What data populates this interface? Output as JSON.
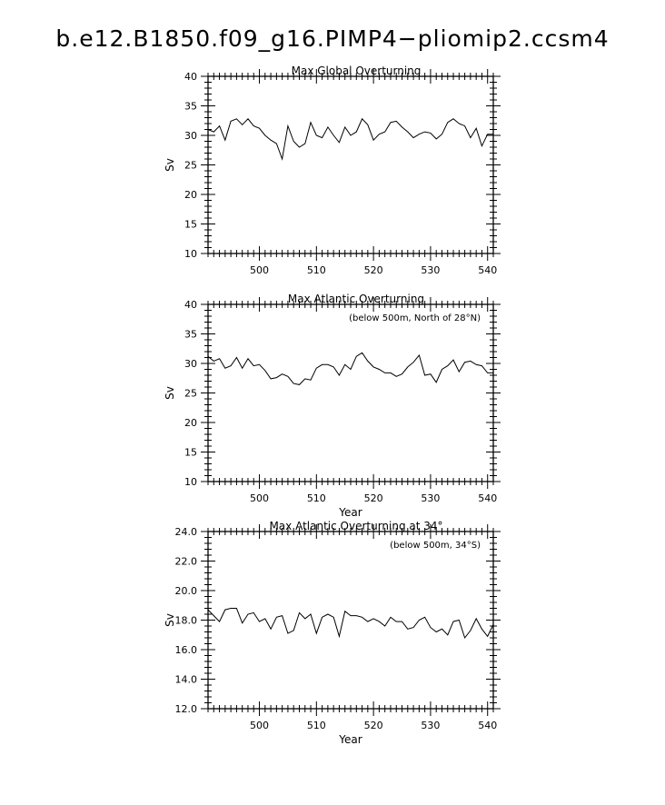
{
  "figure": {
    "title": "b.e12.B1850.f09_g16.PIMP4−pliomip2.ccsm4"
  },
  "chart_data": [
    {
      "type": "line",
      "title": "Max Global Overturning",
      "annotation": "",
      "xlabel": "",
      "ylabel": "Sv",
      "xlim": [
        491,
        541
      ],
      "ylim": [
        10,
        40
      ],
      "xticks": [
        500,
        510,
        520,
        530,
        540
      ],
      "xtick_labels": [
        "500",
        "510",
        "520",
        "530",
        "540"
      ],
      "yticks": [
        10,
        15,
        20,
        25,
        30,
        35,
        40
      ],
      "ytick_labels": [
        "10",
        "15",
        "20",
        "25",
        "30",
        "35",
        "40"
      ],
      "grid": false,
      "series": [
        {
          "x": [
            491,
            492,
            493,
            494,
            495,
            496,
            497,
            498,
            499,
            500,
            501,
            502,
            503,
            504,
            505,
            506,
            507,
            508,
            509,
            510,
            511,
            512,
            513,
            514,
            515,
            516,
            517,
            518,
            519,
            520,
            521,
            522,
            523,
            524,
            525,
            526,
            527,
            528,
            529,
            530,
            531,
            532,
            533,
            534,
            535,
            536,
            537,
            538,
            539,
            540,
            541
          ],
          "y": [
            31.0,
            30.6,
            31.6,
            29.2,
            32.4,
            32.8,
            31.8,
            32.8,
            31.6,
            31.2,
            30.0,
            29.2,
            28.6,
            26.0,
            31.6,
            29.0,
            28.0,
            28.6,
            32.2,
            30.0,
            29.6,
            31.4,
            30.0,
            28.8,
            31.4,
            30.0,
            30.6,
            32.8,
            31.8,
            29.2,
            30.2,
            30.6,
            32.2,
            32.4,
            31.4,
            30.6,
            29.6,
            30.2,
            30.6,
            30.4,
            29.4,
            30.2,
            32.2,
            32.8,
            32.0,
            31.6,
            29.6,
            31.2,
            28.2,
            30.2,
            30.2
          ]
        }
      ]
    },
    {
      "type": "line",
      "title": "Max Atlantic Overturning",
      "annotation": "(below 500m, North of 28°N)",
      "xlabel": "Year",
      "ylabel": "Sv",
      "xlim": [
        491,
        541
      ],
      "ylim": [
        10,
        40
      ],
      "xticks": [
        500,
        510,
        520,
        530,
        540
      ],
      "xtick_labels": [
        "500",
        "510",
        "520",
        "530",
        "540"
      ],
      "yticks": [
        10,
        15,
        20,
        25,
        30,
        35,
        40
      ],
      "ytick_labels": [
        "10",
        "15",
        "20",
        "25",
        "30",
        "35",
        "40"
      ],
      "grid": false,
      "series": [
        {
          "x": [
            491,
            492,
            493,
            494,
            495,
            496,
            497,
            498,
            499,
            500,
            501,
            502,
            503,
            504,
            505,
            506,
            507,
            508,
            509,
            510,
            511,
            512,
            513,
            514,
            515,
            516,
            517,
            518,
            519,
            520,
            521,
            522,
            523,
            524,
            525,
            526,
            527,
            528,
            529,
            530,
            531,
            532,
            533,
            534,
            535,
            536,
            537,
            538,
            539,
            540,
            541
          ],
          "y": [
            31.2,
            30.4,
            30.8,
            29.2,
            29.6,
            31.0,
            29.2,
            30.8,
            29.6,
            29.8,
            28.8,
            27.4,
            27.6,
            28.2,
            27.8,
            26.6,
            26.4,
            27.4,
            27.2,
            29.2,
            29.8,
            29.8,
            29.4,
            28.0,
            29.8,
            29.0,
            31.2,
            31.8,
            30.4,
            29.4,
            29.0,
            28.4,
            28.4,
            27.8,
            28.2,
            29.4,
            30.2,
            31.4,
            28.0,
            28.2,
            26.8,
            29.0,
            29.6,
            30.6,
            28.6,
            30.2,
            30.4,
            29.8,
            29.6,
            28.4,
            28.4
          ]
        }
      ]
    },
    {
      "type": "line",
      "title": "Max Atlantic Overturning at 34°",
      "annotation": "(below 500m, 34°S)",
      "xlabel": "Year",
      "ylabel": "Sv",
      "xlim": [
        491,
        541
      ],
      "ylim": [
        12,
        24
      ],
      "xticks": [
        500,
        510,
        520,
        530,
        540
      ],
      "xtick_labels": [
        "500",
        "510",
        "520",
        "530",
        "540"
      ],
      "yticks": [
        12,
        14,
        16,
        18,
        20,
        22,
        24
      ],
      "ytick_labels": [
        "12.0",
        "14.0",
        "16.0",
        "18.0",
        "20.0",
        "22.0",
        "24.0"
      ],
      "grid": false,
      "series": [
        {
          "x": [
            491,
            492,
            493,
            494,
            495,
            496,
            497,
            498,
            499,
            500,
            501,
            502,
            503,
            504,
            505,
            506,
            507,
            508,
            509,
            510,
            511,
            512,
            513,
            514,
            515,
            516,
            517,
            518,
            519,
            520,
            521,
            522,
            523,
            524,
            525,
            526,
            527,
            528,
            529,
            530,
            531,
            532,
            533,
            534,
            535,
            536,
            537,
            538,
            539,
            540,
            541
          ],
          "y": [
            18.7,
            18.3,
            17.9,
            18.7,
            18.8,
            18.8,
            17.8,
            18.4,
            18.5,
            17.9,
            18.1,
            17.4,
            18.2,
            18.3,
            17.1,
            17.3,
            18.5,
            18.1,
            18.4,
            17.1,
            18.2,
            18.4,
            18.2,
            16.9,
            18.6,
            18.3,
            18.3,
            18.2,
            17.9,
            18.1,
            17.9,
            17.6,
            18.2,
            17.9,
            17.9,
            17.4,
            17.5,
            18.0,
            18.2,
            17.5,
            17.2,
            17.4,
            17.0,
            17.9,
            18.0,
            16.8,
            17.3,
            18.1,
            17.4,
            16.9,
            17.7
          ]
        }
      ]
    }
  ]
}
